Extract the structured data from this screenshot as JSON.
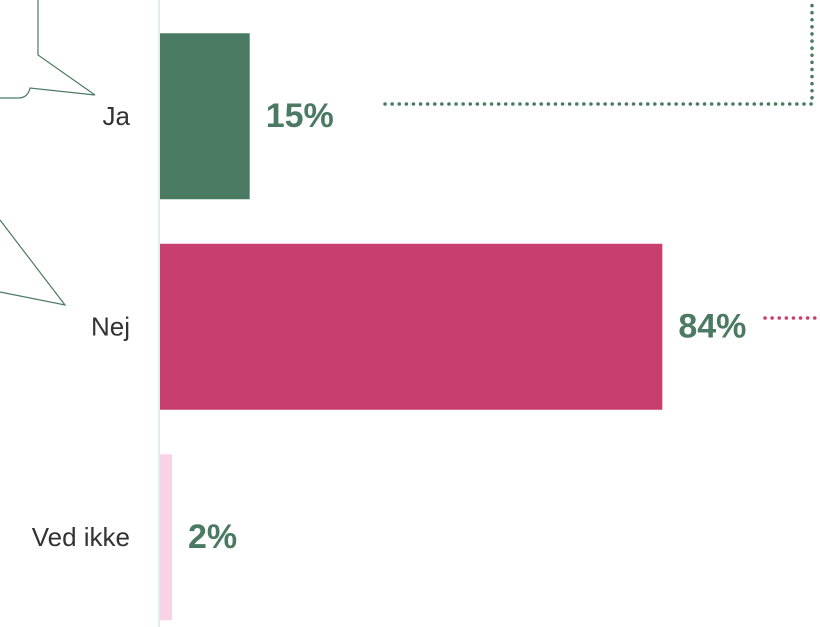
{
  "chart_data": {
    "type": "bar",
    "orientation": "horizontal",
    "categories": [
      "Ja",
      "Nej",
      "Ved ikke"
    ],
    "values": [
      15,
      84,
      2
    ],
    "value_labels": [
      "15%",
      "84%",
      "2%"
    ],
    "colors": [
      "#4b7a63",
      "#c83e6e",
      "#f8d3e5"
    ],
    "label_color": "#4b7a63"
  }
}
